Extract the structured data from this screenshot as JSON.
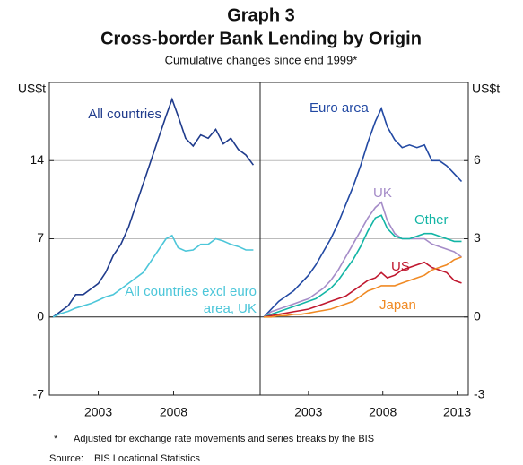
{
  "header": {
    "graph": "Graph 3",
    "title": "Cross-border Bank Lending by Origin",
    "subtitle": "Cumulative changes since end 1999*"
  },
  "chart_data": [
    {
      "type": "line",
      "unit": "US$t",
      "yaxis_side": "left",
      "xlim": [
        1999.75,
        2013.75
      ],
      "xticks": [
        2003,
        2008
      ],
      "ylim": [
        -7,
        21
      ],
      "yticks": [
        -7,
        0,
        7,
        14
      ],
      "grid": true,
      "x": [
        2000,
        2000.5,
        2001,
        2001.5,
        2002,
        2002.5,
        2003,
        2003.5,
        2004,
        2004.5,
        2005,
        2005.5,
        2006,
        2006.5,
        2007,
        2007.5,
        2007.9,
        2008.3,
        2008.8,
        2009.3,
        2009.8,
        2010.3,
        2010.8,
        2011.3,
        2011.8,
        2012.3,
        2012.8,
        2013.3
      ],
      "series": [
        {
          "name": "All countries",
          "color": "#1f3b8c",
          "values": [
            0,
            0.5,
            1,
            2,
            2,
            2.5,
            3,
            4,
            5.5,
            6.5,
            8,
            10,
            12,
            14,
            16,
            18,
            19.5,
            18,
            16,
            15.3,
            16.3,
            16,
            16.8,
            15.5,
            16,
            15,
            14.5,
            13.6
          ]
        },
        {
          "name": "All countries excl euro area, UK",
          "color": "#4cc6d9",
          "values": [
            0,
            0.3,
            0.5,
            0.8,
            1,
            1.2,
            1.5,
            1.8,
            2,
            2.5,
            3,
            3.5,
            4,
            5,
            6,
            7,
            7.3,
            6.2,
            5.9,
            6,
            6.5,
            6.5,
            7,
            6.8,
            6.5,
            6.3,
            6,
            6
          ]
        }
      ]
    },
    {
      "type": "line",
      "unit": "US$t",
      "yaxis_side": "right",
      "xlim": [
        1999.75,
        2013.75
      ],
      "xticks": [
        2003,
        2008,
        2013
      ],
      "ylim": [
        -3,
        9
      ],
      "yticks": [
        -3,
        0,
        3,
        6
      ],
      "grid": true,
      "x": [
        2000,
        2000.5,
        2001,
        2001.5,
        2002,
        2002.5,
        2003,
        2003.5,
        2004,
        2004.5,
        2005,
        2005.5,
        2006,
        2006.5,
        2007,
        2007.5,
        2007.9,
        2008.3,
        2008.8,
        2009.3,
        2009.8,
        2010.3,
        2010.8,
        2011.3,
        2011.8,
        2012.3,
        2012.8,
        2013.3
      ],
      "series": [
        {
          "name": "Euro area",
          "color": "#2249a3",
          "values": [
            0,
            0.3,
            0.6,
            0.8,
            1,
            1.3,
            1.6,
            2,
            2.5,
            3,
            3.6,
            4.3,
            5,
            5.8,
            6.7,
            7.5,
            8,
            7.3,
            6.8,
            6.5,
            6.6,
            6.5,
            6.6,
            6,
            6,
            5.8,
            5.5,
            5.2
          ]
        },
        {
          "name": "UK",
          "color": "#a58cc8",
          "values": [
            0,
            0.2,
            0.3,
            0.4,
            0.5,
            0.6,
            0.7,
            0.9,
            1.1,
            1.4,
            1.8,
            2.3,
            2.8,
            3.3,
            3.8,
            4.2,
            4.4,
            3.7,
            3.2,
            3,
            3,
            3,
            3,
            2.8,
            2.7,
            2.6,
            2.5,
            2.3
          ]
        },
        {
          "name": "Other",
          "color": "#12b5a5",
          "values": [
            0,
            0.1,
            0.2,
            0.3,
            0.4,
            0.5,
            0.6,
            0.7,
            0.9,
            1.1,
            1.4,
            1.8,
            2.2,
            2.7,
            3.3,
            3.8,
            3.9,
            3.4,
            3.1,
            3,
            3,
            3.1,
            3.2,
            3.2,
            3.1,
            3,
            2.9,
            2.9
          ]
        },
        {
          "name": "US",
          "color": "#c0182f",
          "values": [
            0,
            0.05,
            0.1,
            0.15,
            0.2,
            0.25,
            0.3,
            0.4,
            0.5,
            0.6,
            0.7,
            0.8,
            1,
            1.2,
            1.4,
            1.5,
            1.7,
            1.5,
            1.6,
            1.8,
            1.9,
            2,
            2.1,
            1.9,
            1.8,
            1.7,
            1.4,
            1.3
          ]
        },
        {
          "name": "Japan",
          "color": "#f08a24",
          "values": [
            0,
            0,
            0.05,
            0.05,
            0.1,
            0.1,
            0.15,
            0.2,
            0.25,
            0.3,
            0.4,
            0.5,
            0.6,
            0.8,
            1,
            1.1,
            1.2,
            1.2,
            1.2,
            1.3,
            1.4,
            1.5,
            1.6,
            1.8,
            1.9,
            2,
            2.2,
            2.3
          ]
        }
      ]
    }
  ],
  "notes": {
    "footnote_mark": "*",
    "footnote": "Adjusted for exchange rate movements and series breaks by the BIS",
    "source_label": "Source:",
    "source": "BIS Locational Statistics"
  }
}
